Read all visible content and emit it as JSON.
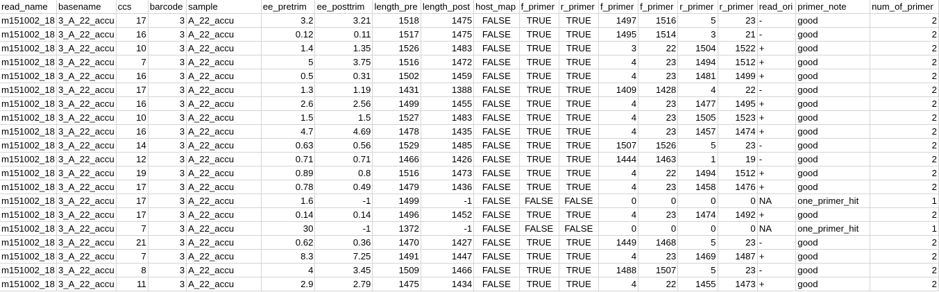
{
  "sheet": {
    "headers": [
      "read_name",
      "basename",
      "ccs",
      "barcode",
      "sample",
      "ee_pretrim",
      "ee_posttrim",
      "length_pre",
      "length_post",
      "host_map",
      "f_primer",
      "r_primer",
      "f_primer",
      "f_primer",
      "r_primer",
      "r_primer",
      "read_ori",
      "primer_note",
      "num_of_primer"
    ],
    "rows": [
      [
        "m151002_18",
        "3_A_22_accu",
        "17",
        "3",
        "A_22_accu",
        "3.2",
        "3.21",
        "1518",
        "1475",
        "FALSE",
        "TRUE",
        "TRUE",
        "1497",
        "1516",
        "5",
        "23",
        "-",
        "good",
        "2"
      ],
      [
        "m151002_18",
        "3_A_22_accu",
        "16",
        "3",
        "A_22_accu",
        "0.12",
        "0.11",
        "1517",
        "1475",
        "FALSE",
        "TRUE",
        "TRUE",
        "1495",
        "1514",
        "3",
        "21",
        "-",
        "good",
        "2"
      ],
      [
        "m151002_18",
        "3_A_22_accu",
        "10",
        "3",
        "A_22_accu",
        "1.4",
        "1.35",
        "1526",
        "1483",
        "FALSE",
        "TRUE",
        "TRUE",
        "3",
        "22",
        "1504",
        "1522",
        "+",
        "good",
        "2"
      ],
      [
        "m151002_18",
        "3_A_22_accu",
        "7",
        "3",
        "A_22_accu",
        "5",
        "3.75",
        "1516",
        "1472",
        "FALSE",
        "TRUE",
        "TRUE",
        "4",
        "23",
        "1494",
        "1512",
        "+",
        "good",
        "2"
      ],
      [
        "m151002_18",
        "3_A_22_accu",
        "16",
        "3",
        "A_22_accu",
        "0.5",
        "0.31",
        "1502",
        "1459",
        "FALSE",
        "TRUE",
        "TRUE",
        "4",
        "23",
        "1481",
        "1499",
        "+",
        "good",
        "2"
      ],
      [
        "m151002_18",
        "3_A_22_accu",
        "17",
        "3",
        "A_22_accu",
        "1.3",
        "1.19",
        "1431",
        "1388",
        "FALSE",
        "TRUE",
        "TRUE",
        "1409",
        "1428",
        "4",
        "22",
        "-",
        "good",
        "2"
      ],
      [
        "m151002_18",
        "3_A_22_accu",
        "16",
        "3",
        "A_22_accu",
        "2.6",
        "2.56",
        "1499",
        "1455",
        "FALSE",
        "TRUE",
        "TRUE",
        "4",
        "23",
        "1477",
        "1495",
        "+",
        "good",
        "2"
      ],
      [
        "m151002_18",
        "3_A_22_accu",
        "10",
        "3",
        "A_22_accu",
        "1.5",
        "1.5",
        "1527",
        "1483",
        "FALSE",
        "TRUE",
        "TRUE",
        "4",
        "23",
        "1505",
        "1523",
        "+",
        "good",
        "2"
      ],
      [
        "m151002_18",
        "3_A_22_accu",
        "16",
        "3",
        "A_22_accu",
        "4.7",
        "4.69",
        "1478",
        "1435",
        "FALSE",
        "TRUE",
        "TRUE",
        "4",
        "23",
        "1457",
        "1474",
        "+",
        "good",
        "2"
      ],
      [
        "m151002_18",
        "3_A_22_accu",
        "14",
        "3",
        "A_22_accu",
        "0.63",
        "0.56",
        "1529",
        "1485",
        "FALSE",
        "TRUE",
        "TRUE",
        "1507",
        "1526",
        "5",
        "23",
        "-",
        "good",
        "2"
      ],
      [
        "m151002_18",
        "3_A_22_accu",
        "12",
        "3",
        "A_22_accu",
        "0.71",
        "0.71",
        "1466",
        "1426",
        "FALSE",
        "TRUE",
        "TRUE",
        "1444",
        "1463",
        "1",
        "19",
        "-",
        "good",
        "2"
      ],
      [
        "m151002_18",
        "3_A_22_accu",
        "19",
        "3",
        "A_22_accu",
        "0.89",
        "0.8",
        "1516",
        "1473",
        "FALSE",
        "TRUE",
        "TRUE",
        "4",
        "22",
        "1494",
        "1512",
        "+",
        "good",
        "2"
      ],
      [
        "m151002_18",
        "3_A_22_accu",
        "17",
        "3",
        "A_22_accu",
        "0.78",
        "0.49",
        "1479",
        "1436",
        "FALSE",
        "TRUE",
        "TRUE",
        "4",
        "23",
        "1458",
        "1476",
        "+",
        "good",
        "2"
      ],
      [
        "m151002_18",
        "3_A_22_accu",
        "17",
        "3",
        "A_22_accu",
        "1.6",
        "-1",
        "1499",
        "-1",
        "FALSE",
        "FALSE",
        "FALSE",
        "0",
        "0",
        "0",
        "0",
        "NA",
        "one_primer_hit",
        "1"
      ],
      [
        "m151002_18",
        "3_A_22_accu",
        "17",
        "3",
        "A_22_accu",
        "0.14",
        "0.14",
        "1496",
        "1452",
        "FALSE",
        "TRUE",
        "TRUE",
        "4",
        "23",
        "1474",
        "1492",
        "+",
        "good",
        "2"
      ],
      [
        "m151002_18",
        "3_A_22_accu",
        "7",
        "3",
        "A_22_accu",
        "30",
        "-1",
        "1372",
        "-1",
        "FALSE",
        "FALSE",
        "FALSE",
        "0",
        "0",
        "0",
        "0",
        "NA",
        "one_primer_hit",
        "1"
      ],
      [
        "m151002_18",
        "3_A_22_accu",
        "21",
        "3",
        "A_22_accu",
        "0.62",
        "0.36",
        "1470",
        "1427",
        "FALSE",
        "TRUE",
        "TRUE",
        "1449",
        "1468",
        "5",
        "23",
        "-",
        "good",
        "2"
      ],
      [
        "m151002_18",
        "3_A_22_accu",
        "7",
        "3",
        "A_22_accu",
        "8.3",
        "7.25",
        "1491",
        "1447",
        "FALSE",
        "TRUE",
        "TRUE",
        "4",
        "23",
        "1469",
        "1487",
        "+",
        "good",
        "2"
      ],
      [
        "m151002_18",
        "3_A_22_accu",
        "8",
        "3",
        "A_22_accu",
        "4",
        "3.45",
        "1509",
        "1466",
        "FALSE",
        "TRUE",
        "TRUE",
        "1488",
        "1507",
        "5",
        "23",
        "-",
        "good",
        "2"
      ],
      [
        "m151002_18",
        "3_A_22_accu",
        "11",
        "3",
        "A_22_accu",
        "2.9",
        "2.79",
        "1475",
        "1434",
        "FALSE",
        "TRUE",
        "TRUE",
        "4",
        "22",
        "1455",
        "1473",
        "+",
        "good",
        "2"
      ]
    ]
  }
}
